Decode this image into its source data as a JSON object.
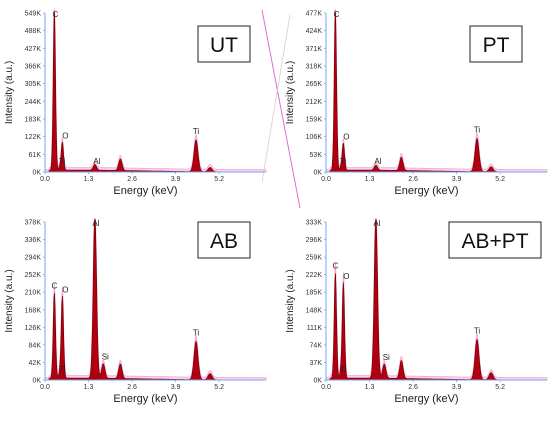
{
  "chart_data": [
    {
      "type": "area",
      "sample": "UT",
      "xlabel": "Energy (keV)",
      "ylabel": "Intensity (a.u.)",
      "xlim": [
        0,
        6.6
      ],
      "ylim": [
        0,
        549
      ],
      "xticks": [
        "0.0",
        "1.3",
        "2.6",
        "3.9",
        "5.2"
      ],
      "yticks": [
        "0K",
        "61K",
        "122K",
        "183K",
        "244K",
        "305K",
        "366K",
        "427K",
        "488K",
        "549K"
      ],
      "peaks": [
        {
          "label": "C",
          "x": 0.28,
          "y": 549
        },
        {
          "label": "O",
          "x": 0.52,
          "y": 95
        },
        {
          "label": "Ti",
          "x": 0.45,
          "y": 12
        },
        {
          "label": "Al",
          "x": 1.49,
          "y": 20
        },
        {
          "label": "",
          "x": 2.25,
          "y": 40
        },
        {
          "label": "Ti",
          "x": 4.51,
          "y": 110
        },
        {
          "label": "",
          "x": 4.93,
          "y": 15
        }
      ]
    },
    {
      "type": "area",
      "sample": "PT",
      "xlabel": "Energy (keV)",
      "ylabel": "Intensity (a.u.)",
      "xlim": [
        0,
        6.6
      ],
      "ylim": [
        0,
        477
      ],
      "xticks": [
        "0.0",
        "1.3",
        "2.6",
        "3.9",
        "5.2"
      ],
      "yticks": [
        "0K",
        "53K",
        "106K",
        "159K",
        "212K",
        "265K",
        "318K",
        "371K",
        "424K",
        "477K"
      ],
      "peaks": [
        {
          "label": "C",
          "x": 0.28,
          "y": 477
        },
        {
          "label": "O",
          "x": 0.52,
          "y": 80
        },
        {
          "label": "Ti",
          "x": 0.45,
          "y": 10
        },
        {
          "label": "Al",
          "x": 1.49,
          "y": 15
        },
        {
          "label": "",
          "x": 2.25,
          "y": 40
        },
        {
          "label": "Ti",
          "x": 4.51,
          "y": 100
        },
        {
          "label": "",
          "x": 4.93,
          "y": 15
        }
      ]
    },
    {
      "type": "area",
      "sample": "AB",
      "xlabel": "Energy (keV)",
      "ylabel": "Intensity (a.u.)",
      "xlim": [
        0,
        6.6
      ],
      "ylim": [
        0,
        378
      ],
      "xticks": [
        "0.0",
        "1.3",
        "2.6",
        "3.9",
        "5.2"
      ],
      "yticks": [
        "0K",
        "42K",
        "84K",
        "126K",
        "168K",
        "210K",
        "252K",
        "294K",
        "336K",
        "378K"
      ],
      "peaks": [
        {
          "label": "C",
          "x": 0.28,
          "y": 205
        },
        {
          "label": "O",
          "x": 0.52,
          "y": 195
        },
        {
          "label": "Ti",
          "x": 0.45,
          "y": 15
        },
        {
          "label": "Al",
          "x": 1.49,
          "y": 390
        },
        {
          "label": "Si",
          "x": 1.74,
          "y": 35
        },
        {
          "label": "",
          "x": 2.25,
          "y": 35
        },
        {
          "label": "Ti",
          "x": 4.51,
          "y": 92
        },
        {
          "label": "",
          "x": 4.93,
          "y": 15
        }
      ]
    },
    {
      "type": "area",
      "sample": "AB+PT",
      "xlabel": "Energy (keV)",
      "ylabel": "Intensity (a.u.)",
      "xlim": [
        0,
        6.6
      ],
      "ylim": [
        0,
        333
      ],
      "xticks": [
        "0.0",
        "1.3",
        "2.6",
        "3.9",
        "5.2"
      ],
      "yticks": [
        "0K",
        "37K",
        "74K",
        "111K",
        "148K",
        "185K",
        "222K",
        "259K",
        "296K",
        "333K"
      ],
      "peaks": [
        {
          "label": "C",
          "x": 0.28,
          "y": 222
        },
        {
          "label": "O",
          "x": 0.52,
          "y": 200
        },
        {
          "label": "Ti",
          "x": 0.45,
          "y": 15
        },
        {
          "label": "Al",
          "x": 1.49,
          "y": 340
        },
        {
          "label": "Si",
          "x": 1.74,
          "y": 30
        },
        {
          "label": "",
          "x": 2.25,
          "y": 38
        },
        {
          "label": "Ti",
          "x": 4.51,
          "y": 85
        },
        {
          "label": "",
          "x": 4.93,
          "y": 15
        }
      ]
    }
  ]
}
